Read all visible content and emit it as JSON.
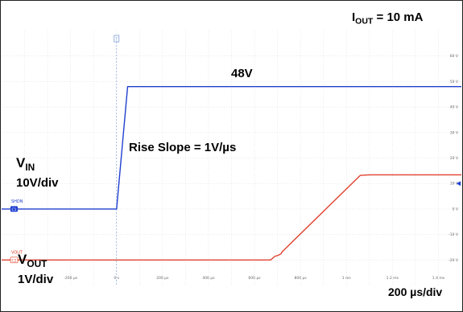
{
  "chart_data": {
    "type": "line",
    "x_unit": "µs",
    "x_range": [
      -500,
      1500
    ],
    "x_tick_labels": [
      "-200 µs",
      "0 s",
      "200 µs",
      "400 µs",
      "600 µs",
      "800 µs",
      "1 ms",
      "1.2 ms",
      "1.4 ms"
    ],
    "x_tick_values": [
      -200,
      0,
      200,
      400,
      600,
      800,
      1000,
      1200,
      1400
    ],
    "right_axis_unit": "V",
    "right_axis_range": [
      -30,
      70
    ],
    "right_tick_labels": [
      "60 V",
      "50 V",
      "40 V",
      "30 V",
      "20 V",
      "10 V",
      "0 V",
      "-10 V",
      "-20 V"
    ],
    "right_tick_values": [
      60,
      50,
      40,
      30,
      20,
      10,
      0,
      -10,
      -20
    ],
    "grid": true,
    "series": [
      {
        "name": "SHDN",
        "color": "#1f3fcf",
        "x": [
          -500,
          0,
          48,
          1500
        ],
        "y": [
          0,
          0,
          48,
          48
        ]
      },
      {
        "name": "VOUT",
        "color": "#e0412e",
        "x": [
          -500,
          670,
          690,
          700,
          715,
          720,
          1060,
          1100,
          1500
        ],
        "y": [
          -20,
          -20,
          -18.5,
          -18.3,
          -17.6,
          -16.8,
          13.2,
          13.4,
          13.4
        ]
      }
    ],
    "annotations": {
      "iout": {
        "main": "I",
        "sub": "OUT",
        "rest": " = 10 mA"
      },
      "level": "48V",
      "slope": "Rise Slope = 1V/µs",
      "vin": {
        "main": "V",
        "sub": "IN"
      },
      "vin_scale": "10V/div",
      "vout": {
        "main": "V",
        "sub": "OUT"
      },
      "vout_scale": "1V/div",
      "timebase": "200 µs/div"
    },
    "markers": {
      "ch1_label": "SHDN",
      "ch1_tag": "C1",
      "ch2_label": "VOUT",
      "ch2_tag": "C2",
      "trigger_tag": "T"
    }
  }
}
